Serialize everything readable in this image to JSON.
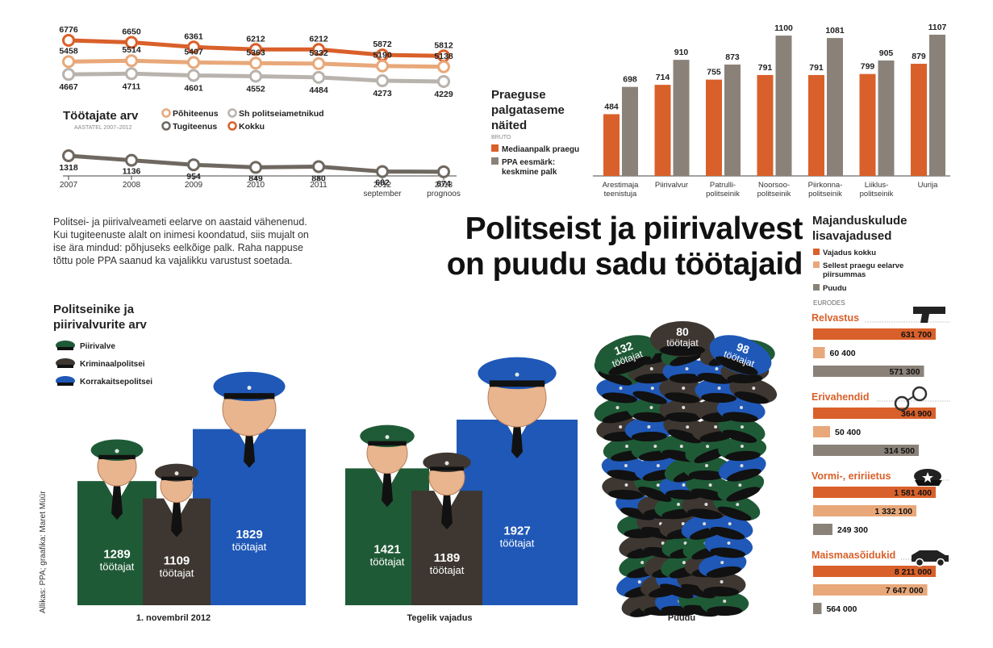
{
  "headline": [
    "Politseist ja piirivalvest",
    "on puudu sadu töötajaid"
  ],
  "intro": "Politsei- ja piirivalveameti eelarve on aastaid vähenenud. Kui tugiteenuste alalt on inimesi koondatud, siis mujalt on ise ära mindud: põhjuseks eelkõige palk. Raha nappuse tõttu pole PPA saanud ka vajalikku varustust soetada.",
  "credit": "Allikas: PPA; graafika: Maret Müür",
  "colors": {
    "orange": "#d9602a",
    "peach": "#e8a87a",
    "grey": "#8a8279",
    "lightgrey": "#b9b3ad",
    "darkgrey": "#6f6861",
    "green": "#1f5a36",
    "brown": "#3e3731",
    "blue": "#1f58b7",
    "skin": "#e9b58e"
  },
  "chart_data": [
    {
      "type": "line",
      "title": "Töötajate arv",
      "subtitle": "AASTATEL 2007–2012",
      "x": [
        "2007",
        "2008",
        "2009",
        "2010",
        "2011",
        "2012 september",
        "2013 prognoos"
      ],
      "series": [
        {
          "name": "Kokku",
          "values": [
            6776,
            6650,
            6361,
            6212,
            6212,
            5872,
            5812
          ]
        },
        {
          "name": "Põhiteenus",
          "values": [
            5458,
            5514,
            5407,
            5363,
            5332,
            5190,
            5138
          ]
        },
        {
          "name": "Sh politseiametnikud",
          "values": [
            4667,
            4711,
            4601,
            4552,
            4484,
            4273,
            4229
          ]
        },
        {
          "name": "Tugiteenus",
          "values": [
            1318,
            1136,
            954,
            849,
            880,
            682,
            674
          ]
        }
      ]
    },
    {
      "type": "bar",
      "title": "Praeguse palgataseme näited",
      "subtitle": "BRUTO",
      "categories": [
        "Arestimaja teenistuja",
        "Piirivalvur",
        "Patrulli-politseinik",
        "Noorsoo-politseinik",
        "Piirkonna-politseinik",
        "Liiklus-politseinik",
        "Uurija"
      ],
      "series": [
        {
          "name": "Mediaanpalk praegu",
          "values": [
            484,
            714,
            755,
            791,
            791,
            799,
            879
          ]
        },
        {
          "name": "PPA eesmärk: keskmine palk",
          "values": [
            698,
            910,
            873,
            1100,
            1081,
            905,
            1107
          ]
        }
      ],
      "ylim": [
        0,
        1150
      ]
    },
    {
      "type": "bar",
      "title": "Majanduskulude lisavajadused",
      "unit": "EURODES",
      "categories": [
        "Relvastus",
        "Erivahendid",
        "Vormi-, eririietus",
        "Maismaasõidukid"
      ],
      "series": [
        {
          "name": "Vajadus kokku",
          "values": [
            631700,
            364900,
            1581400,
            8211000
          ],
          "labels": [
            "631 700",
            "364 900",
            "1 581 400",
            "8 211 000"
          ]
        },
        {
          "name": "Sellest praegu eelarve piirsummas",
          "values": [
            60400,
            50400,
            1332100,
            7647000
          ],
          "labels": [
            "60 400",
            "50 400",
            "1 332 100",
            "7 647 000"
          ]
        },
        {
          "name": "Puudu",
          "values": [
            571300,
            314500,
            249300,
            564000
          ],
          "labels": [
            "571 300",
            "314 500",
            "249 300",
            "564 000"
          ]
        }
      ]
    },
    {
      "type": "bar",
      "title": "Politseinike ja piirivalvurite arv",
      "legend": [
        "Piirivalve",
        "Kriminaalpolitsei",
        "Korrakaitsepolitsei"
      ],
      "unit_label": "töötajat",
      "groups": [
        {
          "label": "1. novembril 2012",
          "values": [
            1289,
            1109,
            1829
          ]
        },
        {
          "label": "Tegelik vajadus",
          "values": [
            1421,
            1189,
            1927
          ]
        },
        {
          "label": "Puudu",
          "values": [
            132,
            80,
            98
          ]
        }
      ]
    }
  ]
}
